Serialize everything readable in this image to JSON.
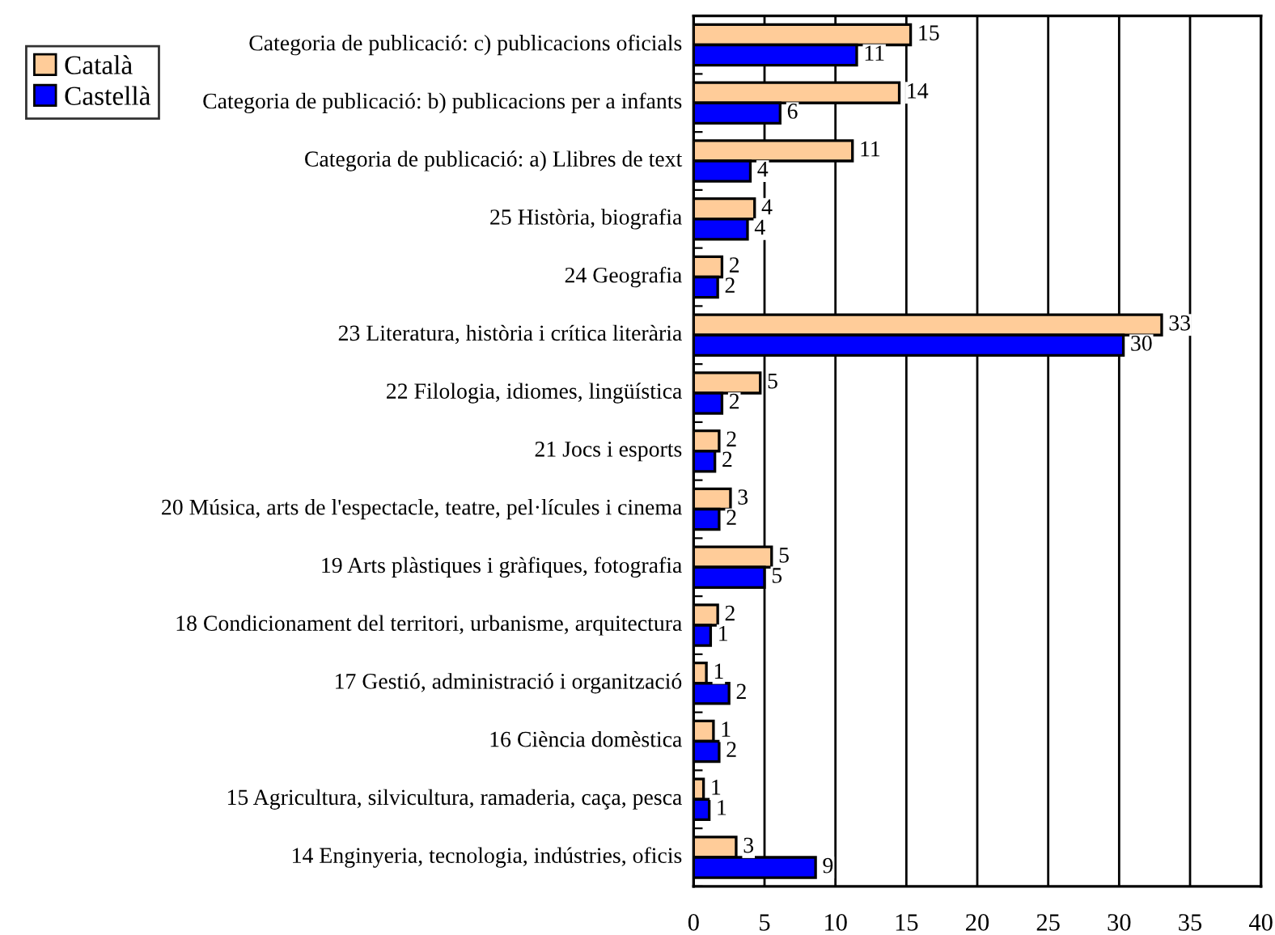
{
  "chart_data": {
    "type": "bar",
    "orientation": "horizontal",
    "categories": [
      "Categoria de publicació: c) publicacions oficials",
      "Categoria de publicació: b) publicacions per a infants",
      "Categoria de publicació: a) Llibres de text",
      "25 Història, biografia",
      "24 Geografia",
      "23 Literatura, història i crítica literària",
      "22 Filologia, idiomes, lingüística",
      "21 Jocs i esports",
      "20 Música, arts de l'espectacle, teatre, pel·lícules i cinema",
      "19 Arts plàstiques i gràfiques, fotografia",
      "18 Condicionament del territori, urbanisme, arquitectura",
      "17 Gestió, administració i organització",
      "16 Ciència domèstica",
      "15 Agricultura, silvicultura, ramaderia, caça, pesca",
      "14 Enginyeria, tecnologia, indústries, oficis"
    ],
    "series": [
      {
        "name": "Català",
        "color": "#ffcc99",
        "values": [
          15.3,
          14.5,
          11.2,
          4.3,
          2.0,
          33.0,
          4.7,
          1.8,
          2.6,
          5.5,
          1.7,
          0.9,
          1.4,
          0.7,
          3.0
        ],
        "value_labels": [
          "15",
          "14",
          "11",
          "4",
          "2",
          "33",
          "5",
          "2",
          "3",
          "5",
          "2",
          "1",
          "1",
          "1",
          "3"
        ]
      },
      {
        "name": "Castellà",
        "color": "#0000ff",
        "values": [
          11.5,
          6.1,
          4.0,
          3.8,
          1.7,
          30.3,
          2.0,
          1.5,
          1.8,
          5.0,
          1.2,
          2.5,
          1.8,
          1.1,
          8.6
        ],
        "value_labels": [
          "11",
          "6",
          "4",
          "4",
          "2",
          "30",
          "2",
          "2",
          "2",
          "5",
          "1",
          "2",
          "2",
          "1",
          "9"
        ]
      }
    ],
    "xlim": [
      0,
      40
    ],
    "xticks": [
      0,
      5,
      10,
      15,
      20,
      25,
      30,
      35,
      40
    ],
    "grid": "x",
    "legend": "top left"
  }
}
